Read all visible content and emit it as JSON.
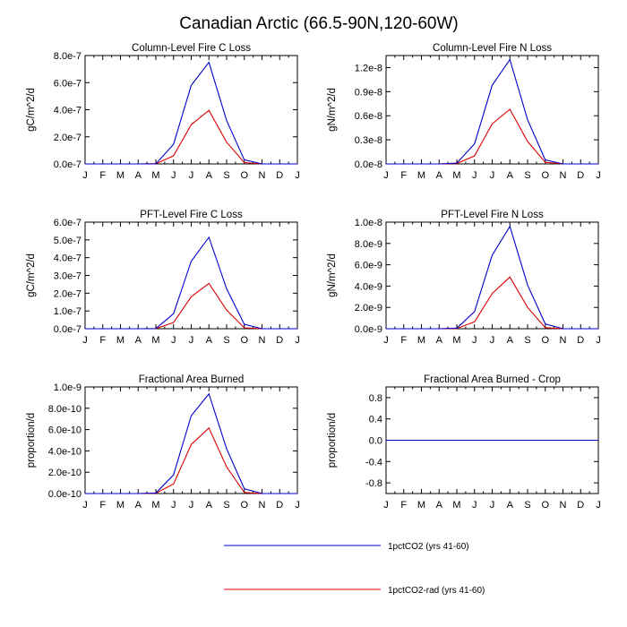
{
  "title": "Canadian Arctic (66.5-90N,120-60W)",
  "colors": {
    "series1": "#0000cc",
    "series2": "#e00000",
    "axis": "#000000"
  },
  "legend": [
    {
      "label": "1pctCO2 (yrs 41-60)",
      "color": "#0000cc"
    },
    {
      "label": "1pctCO2-rad (yrs 41-60)",
      "color": "#e00000"
    }
  ],
  "chart_data": [
    {
      "type": "line",
      "title": "Column-Level Fire C Loss",
      "ylabel": "gC/m^2/d",
      "categories": [
        "J",
        "F",
        "M",
        "A",
        "M",
        "J",
        "J",
        "A",
        "S",
        "O",
        "N",
        "D",
        "J"
      ],
      "ylim": [
        0,
        8e-07
      ],
      "yticks": [
        0,
        2e-07,
        4e-07,
        6e-07,
        8e-07
      ],
      "ytick_labels": [
        "0.0e-7",
        "2.0e-7",
        "4.0e-7",
        "6.0e-7",
        "8.0e-7"
      ],
      "series": [
        {
          "values": [
            0,
            0,
            0,
            0,
            1e-09,
            1.45e-07,
            5.8e-07,
            7.5e-07,
            3.2e-07,
            3e-08,
            0,
            0,
            0
          ]
        },
        {
          "values": [
            0,
            0,
            0,
            0,
            1e-09,
            6e-08,
            2.9e-07,
            3.95e-07,
            1.6e-07,
            1e-08,
            0,
            0,
            0
          ]
        }
      ]
    },
    {
      "type": "line",
      "title": "Column-Level Fire N Loss",
      "ylabel": "gN/m^2/d",
      "categories": [
        "J",
        "F",
        "M",
        "A",
        "M",
        "J",
        "J",
        "A",
        "S",
        "O",
        "N",
        "D",
        "J"
      ],
      "ylim": [
        0,
        1.35e-08
      ],
      "yticks": [
        0,
        3e-09,
        6e-09,
        9e-09,
        1.2e-08
      ],
      "ytick_labels": [
        "0.0e-8",
        "0.3e-8",
        "0.6e-8",
        "0.9e-8",
        "1.2e-8"
      ],
      "series": [
        {
          "values": [
            0,
            0,
            0,
            0,
            1e-10,
            2.5e-09,
            9.8e-09,
            1.3e-08,
            5.5e-09,
            5e-10,
            0,
            0,
            0
          ]
        },
        {
          "values": [
            0,
            0,
            0,
            0,
            5e-11,
            1e-09,
            5e-09,
            6.8e-09,
            2.8e-09,
            2e-10,
            0,
            0,
            0
          ]
        }
      ]
    },
    {
      "type": "line",
      "title": "PFT-Level Fire C Loss",
      "ylabel": "gC/m^2/d",
      "categories": [
        "J",
        "F",
        "M",
        "A",
        "M",
        "J",
        "J",
        "A",
        "S",
        "O",
        "N",
        "D",
        "J"
      ],
      "ylim": [
        0,
        6e-07
      ],
      "yticks": [
        0,
        1e-07,
        2e-07,
        3e-07,
        4e-07,
        5e-07,
        6e-07
      ],
      "ytick_labels": [
        "0.0e-7",
        "1.0e-7",
        "2.0e-7",
        "3.0e-7",
        "4.0e-7",
        "5.0e-7",
        "6.0e-7"
      ],
      "series": [
        {
          "values": [
            0,
            0,
            0,
            0,
            1e-09,
            8.5e-08,
            3.8e-07,
            5.15e-07,
            2.25e-07,
            2.5e-08,
            0,
            0,
            0
          ]
        },
        {
          "values": [
            0,
            0,
            0,
            0,
            5e-10,
            3.5e-08,
            1.8e-07,
            2.55e-07,
            1.05e-07,
            5e-09,
            0,
            0,
            0
          ]
        }
      ]
    },
    {
      "type": "line",
      "title": "PFT-Level Fire N Loss",
      "ylabel": "gN/m^2/d",
      "categories": [
        "J",
        "F",
        "M",
        "A",
        "M",
        "J",
        "J",
        "A",
        "S",
        "O",
        "N",
        "D",
        "J"
      ],
      "ylim": [
        0,
        1e-08
      ],
      "yticks": [
        0,
        2e-09,
        4e-09,
        6e-09,
        8e-09,
        1e-08
      ],
      "ytick_labels": [
        "0.0e-9",
        "2.0e-9",
        "4.0e-9",
        "6.0e-9",
        "8.0e-9",
        "1.0e-8"
      ],
      "series": [
        {
          "values": [
            0,
            0,
            0,
            0,
            5e-11,
            1.6e-09,
            6.9e-09,
            9.6e-09,
            4.1e-09,
            4.5e-10,
            0,
            0,
            0
          ]
        },
        {
          "values": [
            0,
            0,
            0,
            0,
            2e-11,
            6.5e-10,
            3.3e-09,
            4.85e-09,
            2e-09,
            1e-10,
            0,
            0,
            0
          ]
        }
      ]
    },
    {
      "type": "line",
      "title": "Fractional Area Burned",
      "ylabel": "proportion/d",
      "categories": [
        "J",
        "F",
        "M",
        "A",
        "M",
        "J",
        "J",
        "A",
        "S",
        "O",
        "N",
        "D",
        "J"
      ],
      "ylim": [
        0,
        1e-09
      ],
      "yticks": [
        0,
        2e-10,
        4e-10,
        6e-10,
        8e-10,
        1e-09
      ],
      "ytick_labels": [
        "0.0e-10",
        "2.0e-10",
        "4.0e-10",
        "6.0e-10",
        "8.0e-10",
        "1.0e-9"
      ],
      "series": [
        {
          "values": [
            0,
            0,
            0,
            0,
            5e-12,
            1.75e-10,
            7.3e-10,
            9.35e-10,
            4.2e-10,
            4.5e-11,
            0,
            0,
            0
          ]
        },
        {
          "values": [
            0,
            0,
            0,
            0,
            2e-12,
            9e-11,
            4.6e-10,
            6.15e-10,
            2.5e-10,
            1e-11,
            0,
            0,
            0
          ]
        }
      ]
    },
    {
      "type": "line",
      "title": "Fractional Area Burned - Crop",
      "ylabel": "proportion/d",
      "categories": [
        "J",
        "F",
        "M",
        "A",
        "M",
        "J",
        "J",
        "A",
        "S",
        "O",
        "N",
        "D",
        "J"
      ],
      "ylim": [
        -1,
        1
      ],
      "yticks": [
        -0.8,
        -0.4,
        0,
        0.4,
        0.8
      ],
      "ytick_labels": [
        "-0.8",
        "-0.4",
        "0.0",
        "0.4",
        "0.8"
      ],
      "series": [
        {
          "values": [
            0,
            0,
            0,
            0,
            0,
            0,
            0,
            0,
            0,
            0,
            0,
            0,
            0
          ]
        },
        {
          "values": [
            0,
            0,
            0,
            0,
            0,
            0,
            0,
            0,
            0,
            0,
            0,
            0,
            0
          ]
        }
      ]
    }
  ]
}
